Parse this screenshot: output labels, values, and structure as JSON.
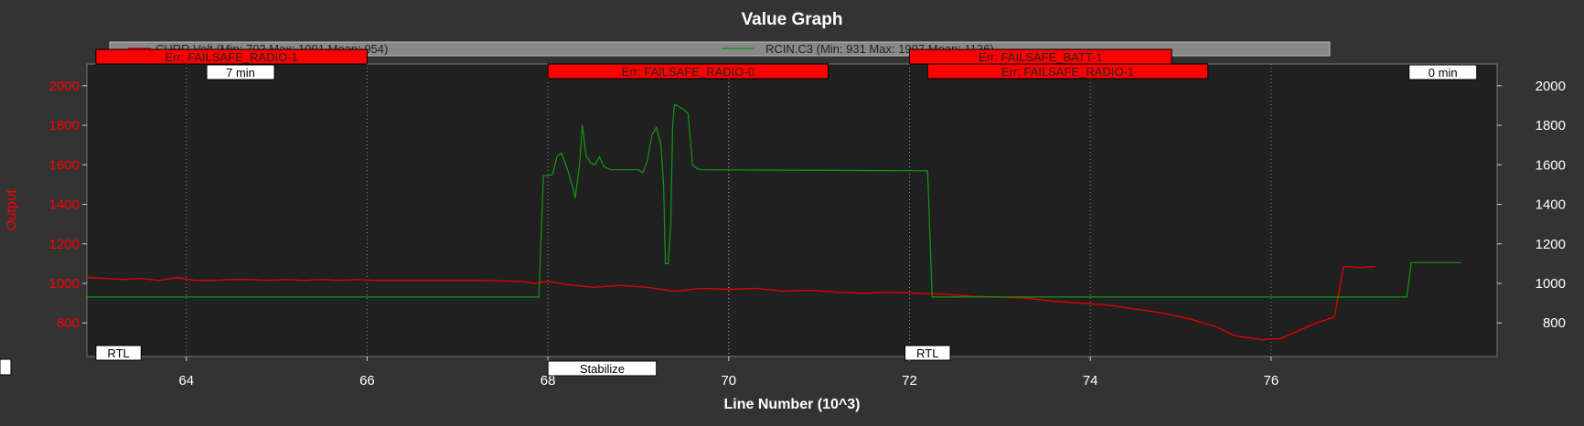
{
  "chart_data": {
    "type": "line",
    "title": "Value Graph",
    "xlabel": "Line Number (10^3)",
    "ylabel": "Output",
    "xlim": [
      62.9,
      78.5
    ],
    "ylim": [
      630,
      2110
    ],
    "x_ticks": [
      "64",
      "66",
      "68",
      "70",
      "72",
      "74",
      "76"
    ],
    "x_tick_values": [
      64,
      66,
      68,
      70,
      72,
      74,
      76
    ],
    "y_ticks_left": [
      "2000",
      "1800",
      "1600",
      "1400",
      "1200",
      "1000",
      "800"
    ],
    "y_ticks_right": [
      "2000",
      "1800",
      "1600",
      "1400",
      "1200",
      "1000",
      "800"
    ],
    "y_tick_values": [
      2000,
      1800,
      1600,
      1400,
      1200,
      1000,
      800
    ],
    "grid": true,
    "legend_position": "top",
    "colors": {
      "background": "#333333",
      "plot_background": "#202020",
      "curr_series": "#dd0000",
      "rcin_series": "#119911",
      "left_axis": "#ff0000",
      "right_axis": "#ffffff",
      "error_box": "#ff0000",
      "legend_box": "#888888"
    },
    "series": [
      {
        "name": "CURR.Volt (Min: 702 Max: 1091 Mean: 954)",
        "color": "#dd0000",
        "points": [
          [
            62.9,
            1030
          ],
          [
            63.1,
            1025
          ],
          [
            63.3,
            1020
          ],
          [
            63.5,
            1025
          ],
          [
            63.7,
            1015
          ],
          [
            63.9,
            1030
          ],
          [
            64.1,
            1015
          ],
          [
            64.3,
            1015
          ],
          [
            64.5,
            1020
          ],
          [
            64.7,
            1020
          ],
          [
            64.9,
            1015
          ],
          [
            65.1,
            1020
          ],
          [
            65.3,
            1015
          ],
          [
            65.5,
            1020
          ],
          [
            65.7,
            1015
          ],
          [
            65.9,
            1020
          ],
          [
            66.1,
            1015
          ],
          [
            66.5,
            1015
          ],
          [
            66.9,
            1015
          ],
          [
            67.3,
            1015
          ],
          [
            67.7,
            1010
          ],
          [
            67.85,
            1000
          ],
          [
            68.0,
            1010
          ],
          [
            68.2,
            995
          ],
          [
            68.5,
            980
          ],
          [
            68.8,
            990
          ],
          [
            69.1,
            980
          ],
          [
            69.4,
            960
          ],
          [
            69.7,
            975
          ],
          [
            70.0,
            970
          ],
          [
            70.3,
            975
          ],
          [
            70.6,
            960
          ],
          [
            70.9,
            965
          ],
          [
            71.2,
            955
          ],
          [
            71.5,
            950
          ],
          [
            71.8,
            955
          ],
          [
            72.1,
            950
          ],
          [
            72.4,
            945
          ],
          [
            72.7,
            935
          ],
          [
            73.0,
            930
          ],
          [
            73.3,
            925
          ],
          [
            73.6,
            910
          ],
          [
            73.9,
            900
          ],
          [
            74.2,
            890
          ],
          [
            74.5,
            870
          ],
          [
            74.8,
            850
          ],
          [
            75.1,
            820
          ],
          [
            75.4,
            780
          ],
          [
            75.6,
            735
          ],
          [
            75.9,
            715
          ],
          [
            76.1,
            720
          ],
          [
            76.3,
            760
          ],
          [
            76.5,
            800
          ],
          [
            76.7,
            830
          ],
          [
            76.8,
            1085
          ],
          [
            77.0,
            1080
          ],
          [
            77.15,
            1085
          ]
        ]
      },
      {
        "name": "RCIN.C3 (Min: 931 Max: 1907 Mean: 1136)",
        "color": "#119911",
        "points": [
          [
            62.9,
            931
          ],
          [
            67.9,
            931
          ],
          [
            67.95,
            1545
          ],
          [
            68.0,
            1545
          ],
          [
            68.05,
            1550
          ],
          [
            68.1,
            1640
          ],
          [
            68.15,
            1660
          ],
          [
            68.22,
            1570
          ],
          [
            68.28,
            1480
          ],
          [
            68.3,
            1430
          ],
          [
            68.35,
            1600
          ],
          [
            68.38,
            1800
          ],
          [
            68.42,
            1650
          ],
          [
            68.47,
            1610
          ],
          [
            68.52,
            1600
          ],
          [
            68.57,
            1640
          ],
          [
            68.62,
            1590
          ],
          [
            68.7,
            1575
          ],
          [
            69.0,
            1575
          ],
          [
            69.05,
            1560
          ],
          [
            69.1,
            1620
          ],
          [
            69.15,
            1750
          ],
          [
            69.2,
            1790
          ],
          [
            69.25,
            1700
          ],
          [
            69.28,
            1500
          ],
          [
            69.3,
            1100
          ],
          [
            69.33,
            1100
          ],
          [
            69.36,
            1300
          ],
          [
            69.38,
            1800
          ],
          [
            69.4,
            1905
          ],
          [
            69.45,
            1895
          ],
          [
            69.5,
            1880
          ],
          [
            69.55,
            1860
          ],
          [
            69.6,
            1600
          ],
          [
            69.65,
            1580
          ],
          [
            69.7,
            1575
          ],
          [
            72.2,
            1570
          ],
          [
            72.25,
            931
          ],
          [
            77.5,
            931
          ],
          [
            77.55,
            1105
          ],
          [
            78.1,
            1105
          ]
        ]
      }
    ],
    "error_labels": [
      {
        "text": "Err: FAILSAFE_RADIO-1",
        "x_start": 63.0,
        "x_end": 66.0,
        "row": 1
      },
      {
        "text": "Err: FAILSAFE_RADIO-0",
        "x_start": 68.0,
        "x_end": 71.1,
        "row": 2
      },
      {
        "text": "Err: FAILSAFE_BATT-1",
        "x_start": 72.0,
        "x_end": 74.9,
        "row": 1
      },
      {
        "text": "Err: FAILSAFE_RADIO-1",
        "x_start": 72.2,
        "x_end": 75.3,
        "row": 2
      }
    ],
    "time_labels": [
      {
        "text": "7 min",
        "x": 64.6
      },
      {
        "text": "0 min",
        "x": 77.9
      }
    ],
    "mode_labels": [
      {
        "text": "RTL",
        "x_start": 63.0,
        "x_end": 63.5
      },
      {
        "text": "Stabilize",
        "x_start": 68.0,
        "x_end": 69.2
      },
      {
        "text": "RTL",
        "x_start": 71.95,
        "x_end": 72.45
      }
    ],
    "vertical_markers": [
      64.0,
      66.0,
      68.0,
      72.0,
      74.0,
      76.0
    ]
  }
}
